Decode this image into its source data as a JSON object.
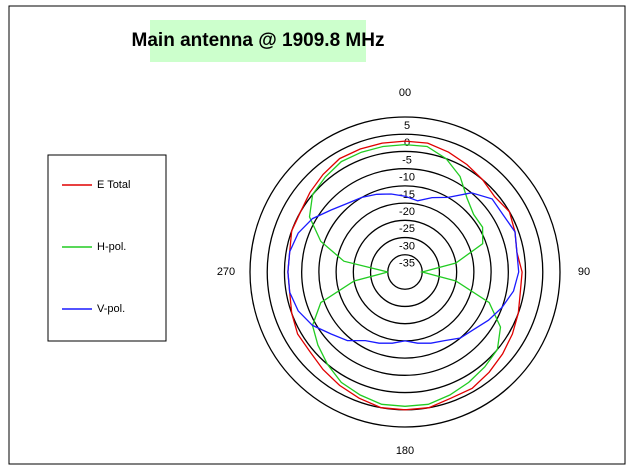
{
  "chart_data": {
    "type": "polar",
    "title": "Main antenna @ 1909.8 MHz",
    "theta": [
      0,
      10,
      20,
      30,
      40,
      50,
      60,
      70,
      80,
      90,
      100,
      110,
      120,
      130,
      140,
      150,
      160,
      170,
      180,
      190,
      200,
      210,
      220,
      230,
      240,
      250,
      260,
      270,
      280,
      290,
      300,
      310,
      320,
      330,
      340,
      350
    ],
    "series": [
      {
        "name": "E Total",
        "color": "#e00000",
        "values": [
          -2,
          -2,
          -3,
          -4,
          -5,
          -6,
          -5,
          -6,
          -7,
          -6,
          -6,
          -5,
          -4,
          -3,
          -2,
          -1,
          -1,
          0,
          0,
          0,
          -1,
          -2,
          -3,
          -4,
          -4,
          -5,
          -6,
          -6,
          -6,
          -5,
          -5,
          -4,
          -3,
          -2,
          -2,
          -2
        ]
      },
      {
        "name": "H-pol.",
        "color": "#22cc22",
        "values": [
          -3,
          -3,
          -5,
          -8,
          -12,
          -14,
          -14,
          -16,
          -25,
          -35,
          -25,
          -14,
          -8,
          -5,
          -4,
          -3,
          -2,
          -1,
          -1,
          -1,
          -2,
          -3,
          -5,
          -7,
          -9,
          -14,
          -25,
          -35,
          -22,
          -14,
          -8,
          -5,
          -4,
          -3,
          -3,
          -3
        ]
      },
      {
        "name": "V-pol.",
        "color": "#1a1aff",
        "values": [
          -18,
          -19,
          -17,
          -15,
          -10,
          -7,
          -7,
          -6,
          -7,
          -7,
          -8,
          -10,
          -12,
          -14,
          -15,
          -17,
          -18,
          -19,
          -20,
          -19,
          -18,
          -17,
          -14,
          -12,
          -9,
          -7,
          -6,
          -6,
          -6,
          -7,
          -9,
          -12,
          -14,
          -15,
          -16,
          -17
        ]
      }
    ],
    "rlim": [
      -40,
      5
    ],
    "rticks": [
      5,
      0,
      -5,
      -10,
      -15,
      -20,
      -25,
      -30,
      -35
    ],
    "thetaticks": [
      {
        "value": 0,
        "label": "00"
      },
      90,
      180,
      270
    ],
    "legend": "left"
  }
}
